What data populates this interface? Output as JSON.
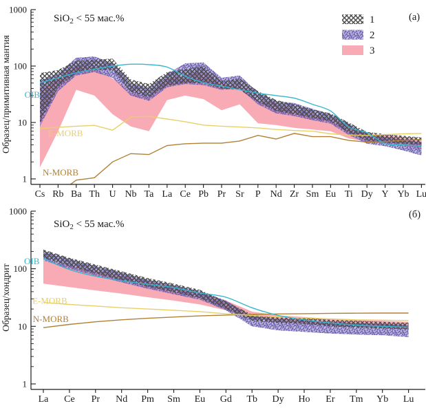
{
  "colors": {
    "pink_band": "#f8abb4",
    "purple_band": "#6a5db0",
    "purple_band_light": "#b3abdd",
    "hatch": "#4c4c4c",
    "oib": "#35b6cd",
    "emorb": "#e8d069",
    "nmorb": "#b08035",
    "axis": "#1a1a1a"
  },
  "legend": {
    "items": [
      {
        "label": "1",
        "style": "band-hatch"
      },
      {
        "label": "2",
        "style": "band-speckle"
      },
      {
        "label": "3",
        "style": "band-solid"
      }
    ]
  },
  "chart_data": [
    {
      "type": "area",
      "panel_tag": "(а)",
      "subtitle": {
        "pre": "SiO",
        "sub": "2",
        "post": " < 55 мас.%"
      },
      "ylabel": "Образец/примитивная мантия",
      "yscale": "log",
      "ylim": [
        1,
        1000
      ],
      "yticks": [
        "1",
        "10",
        "100",
        "1000"
      ],
      "grid": false,
      "legend_position": "top-right",
      "show_legend": true,
      "categories": [
        "Cs",
        "Rb",
        "Ba",
        "Th",
        "U",
        "Nb",
        "Ta",
        "La",
        "Ce",
        "Pb",
        "Pr",
        "Sr",
        "P",
        "Nd",
        "Zr",
        "Sm",
        "Eu",
        "Ti",
        "Dy",
        "Y",
        "Yb",
        "Lu"
      ],
      "series": [
        {
          "name": "3",
          "style": "band-solid",
          "upper": [
            38,
            62,
            98,
            92,
            60,
            35,
            28,
            60,
            68,
            77,
            48,
            42,
            24,
            21,
            17,
            14,
            12,
            8.5,
            6.4,
            6.0,
            5.6,
            5.0
          ],
          "lower": [
            1.6,
            7,
            38,
            30,
            14,
            8.5,
            7,
            25,
            30,
            26,
            16.5,
            21,
            9.7,
            9,
            8,
            7.5,
            7,
            5.2,
            4.6,
            4.3,
            3.8,
            3.4
          ]
        },
        {
          "name": "2",
          "style": "band-speckle",
          "upper": [
            55,
            75,
            140,
            148,
            112,
            50,
            42,
            72,
            112,
            116,
            62,
            68,
            34,
            24,
            22,
            17.5,
            14,
            9.5,
            6.2,
            5.6,
            5.0,
            4.4
          ],
          "lower": [
            8.5,
            36,
            68,
            78,
            62,
            30,
            24,
            42,
            48,
            46,
            38,
            40,
            21,
            14.5,
            13,
            11,
            9.5,
            6,
            4.2,
            3.8,
            3.2,
            2.6
          ]
        },
        {
          "name": "1",
          "style": "band-hatch",
          "upper": [
            75,
            85,
            125,
            130,
            135,
            58,
            48,
            78,
            88,
            100,
            54,
            60,
            36,
            25,
            21,
            17,
            14.5,
            10,
            6.8,
            6.2,
            5.8,
            5.4
          ],
          "lower": [
            10,
            42,
            75,
            85,
            85,
            35,
            28,
            45,
            50,
            50,
            40,
            38,
            23,
            16,
            14,
            12,
            10.5,
            6.5,
            4.8,
            4.4,
            4.2,
            4.0
          ]
        },
        {
          "name": "N-MORB",
          "style": "line",
          "color_key": "nmorb",
          "smooth": false,
          "values": [
            0.25,
            0.55,
            0.95,
            1.05,
            2.0,
            2.8,
            2.7,
            3.9,
            4.2,
            4.3,
            4.3,
            4.7,
            5.9,
            5.1,
            6.4,
            5.6,
            5.6,
            4.8,
            4.5,
            4.6,
            4.8,
            5.0
          ]
        },
        {
          "name": "E-MORB",
          "style": "line",
          "color_key": "emorb",
          "smooth": false,
          "values": [
            7.8,
            8.2,
            8.6,
            8.9,
            7.3,
            12.5,
            12.8,
            11.5,
            10.3,
            9.0,
            8.6,
            8.3,
            8.0,
            7.5,
            7.2,
            7.0,
            6.3,
            6.0,
            5.9,
            6.1,
            6.3,
            6.4
          ]
        },
        {
          "name": "OIB",
          "style": "line",
          "color_key": "oib",
          "smooth": true,
          "values": [
            50,
            62,
            76,
            88,
            100,
            108,
            106,
            96,
            66,
            51,
            44,
            38,
            33,
            30,
            27,
            21,
            16,
            8.3,
            6.6,
            4.2,
            4.0,
            3.8
          ]
        }
      ],
      "annotations": [
        {
          "text": "OIB",
          "xe": -0.85,
          "v": 31,
          "color_key": "oib"
        },
        {
          "text": "E-MORB",
          "xe": 0.45,
          "v": 6.5,
          "color_key": "emorb"
        },
        {
          "text": "N-MORB",
          "xe": 0.15,
          "v": 1.3,
          "color_key": "nmorb"
        }
      ]
    },
    {
      "type": "area",
      "panel_tag": "(б)",
      "subtitle": {
        "pre": "SiO",
        "sub": "2",
        "post": " < 55 мас.%"
      },
      "ylabel": "Образец/хондрит",
      "yscale": "log",
      "ylim": [
        1,
        1000
      ],
      "yticks": [
        "1",
        "10",
        "100",
        "1000"
      ],
      "grid": false,
      "show_legend": false,
      "categories": [
        "La",
        "Ce",
        "Pr",
        "Nd",
        "Pm",
        "Sm",
        "Eu",
        "Gd",
        "Tb",
        "Dy",
        "Ho",
        "Er",
        "Tm",
        "Yb",
        "Lu"
      ],
      "series": [
        {
          "name": "3",
          "style": "band-solid",
          "upper": [
            140,
            112,
            92,
            75,
            60,
            48,
            38,
            28,
            18,
            15.5,
            14.5,
            13.5,
            13,
            12.5,
            12
          ],
          "lower": [
            55,
            48,
            42,
            37,
            32,
            28,
            24,
            19,
            14,
            12,
            11,
            10.5,
            10,
            9.5,
            9
          ]
        },
        {
          "name": "2",
          "style": "band-speckle",
          "upper": [
            205,
            148,
            112,
            86,
            65,
            52,
            41,
            28,
            15,
            13.5,
            13,
            12,
            11.5,
            11,
            10.5
          ],
          "lower": [
            140,
            100,
            76,
            58,
            45,
            36,
            29,
            19,
            10,
            8.5,
            8,
            7.5,
            7.2,
            7,
            6.5
          ]
        },
        {
          "name": "1",
          "style": "band-hatch",
          "upper": [
            215,
            155,
            118,
            90,
            69,
            55,
            43,
            27,
            16,
            14.5,
            14,
            13,
            12.5,
            12,
            11.5
          ],
          "lower": [
            155,
            110,
            83,
            63,
            49,
            39,
            31,
            20,
            12.5,
            11.5,
            11,
            10,
            9.5,
            9.2,
            8.8
          ]
        },
        {
          "name": "N-MORB",
          "style": "line",
          "color_key": "nmorb",
          "smooth": false,
          "values": [
            9.5,
            10.8,
            12,
            13,
            13.8,
            14.5,
            15.2,
            15.7,
            16.1,
            16.4,
            16.6,
            16.8,
            16.9,
            17,
            17
          ]
        },
        {
          "name": "E-MORB",
          "style": "line",
          "color_key": "emorb",
          "smooth": false,
          "values": [
            26,
            24,
            22.5,
            21,
            20,
            19,
            18,
            16.5,
            15.5,
            14.5,
            14,
            13.5,
            13,
            12.8,
            12.6
          ]
        },
        {
          "name": "OIB",
          "style": "line",
          "color_key": "oib",
          "smooth": true,
          "values": [
            150,
            97,
            74,
            62,
            54,
            47,
            38,
            32,
            21,
            15.5,
            13,
            11.5,
            10.5,
            10,
            9.7
          ]
        }
      ],
      "annotations": [
        {
          "text": "OIB",
          "xe": -0.74,
          "v": 135,
          "color_key": "oib"
        },
        {
          "text": "E-MORB",
          "xe": -0.42,
          "v": 28,
          "color_key": "emorb"
        },
        {
          "text": "N-MORB",
          "xe": -0.4,
          "v": 13.5,
          "color_key": "nmorb"
        }
      ]
    }
  ]
}
